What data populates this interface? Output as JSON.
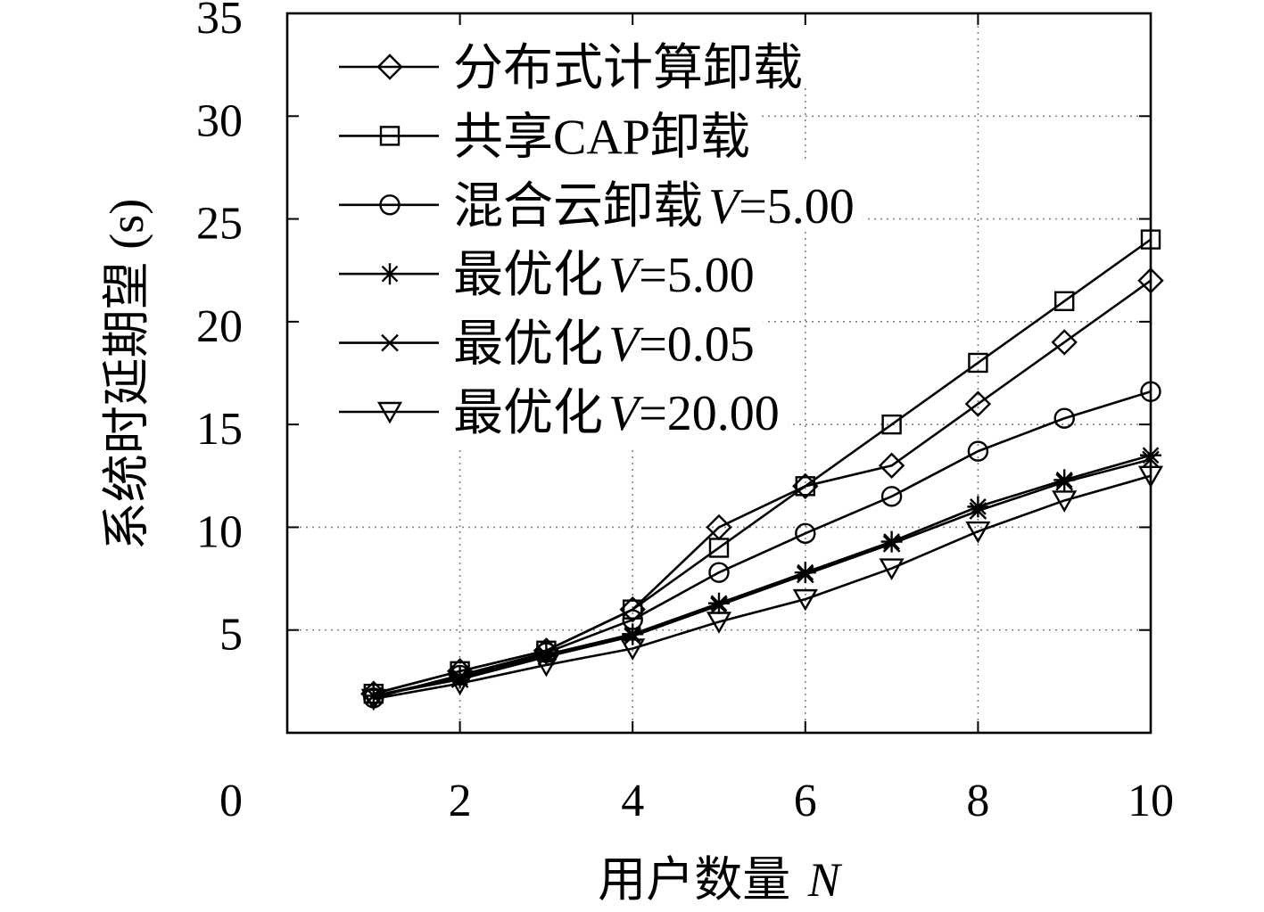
{
  "chart_data": {
    "type": "line",
    "xlabel": "用户数量 N",
    "ylabel": "系统时延期望 (s)",
    "xlim": [
      0,
      10
    ],
    "ylim": [
      0,
      35
    ],
    "xticks": [
      2,
      4,
      6,
      8,
      10
    ],
    "yticks": [
      0,
      5,
      10,
      15,
      20,
      25,
      30,
      35
    ],
    "grid": true,
    "legend": "top-left",
    "line_color": "#000000",
    "grid_color": "#808080",
    "x": [
      1,
      2,
      3,
      4,
      5,
      6,
      7,
      8,
      9,
      10
    ],
    "series": [
      {
        "name": "分布式计算卸载",
        "marker": "diamond",
        "values": [
          1.9,
          3.0,
          4.0,
          6.0,
          10.0,
          12.0,
          13.0,
          16.0,
          19.0,
          22.0
        ]
      },
      {
        "name": "共享CAP卸载",
        "marker": "square",
        "values": [
          1.9,
          3.0,
          4.0,
          6.0,
          9.0,
          12.0,
          15.0,
          18.0,
          21.0,
          24.0
        ]
      },
      {
        "name": "混合云卸载V=5.00",
        "marker": "circle",
        "values": [
          1.7,
          2.8,
          3.9,
          5.5,
          7.8,
          9.7,
          11.5,
          13.7,
          15.3,
          16.6
        ]
      },
      {
        "name": "最优化V=5.00",
        "marker": "star",
        "values": [
          1.8,
          2.7,
          3.8,
          4.8,
          6.3,
          7.8,
          9.3,
          11.0,
          12.3,
          13.5
        ]
      },
      {
        "name": "最优化V=0.05",
        "marker": "cross",
        "values": [
          1.8,
          2.6,
          3.7,
          4.7,
          6.2,
          7.7,
          9.2,
          10.8,
          12.2,
          13.3
        ]
      },
      {
        "name": "最优化V=20.00",
        "marker": "triangle-down",
        "values": [
          1.65,
          2.4,
          3.3,
          4.1,
          5.4,
          6.5,
          8.0,
          9.8,
          11.3,
          12.5
        ]
      }
    ]
  }
}
